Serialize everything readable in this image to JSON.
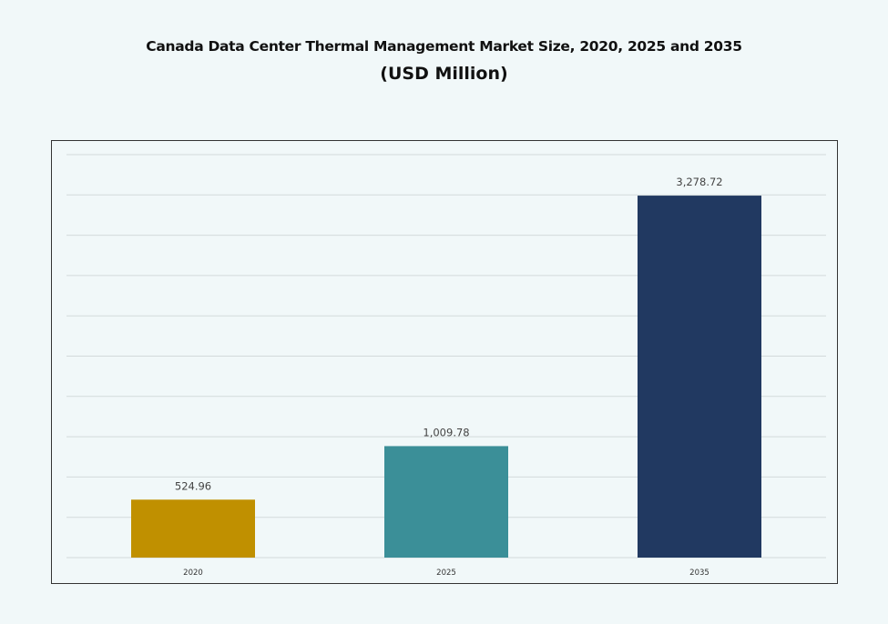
{
  "chart_data": {
    "type": "bar",
    "title": "Canada Data Center Thermal Management Market Size, 2020, 2025 and 2035",
    "subtitle": "(USD Million)",
    "categories": [
      "2020",
      "2025",
      "2035"
    ],
    "values": [
      524.96,
      1009.78,
      3278.72
    ],
    "value_labels": [
      "524.96",
      "1,009.78",
      "3,278.72"
    ],
    "colors": [
      "#c09000",
      "#3b8f98",
      "#213961"
    ],
    "ylim": [
      0,
      3650
    ],
    "grid": true,
    "legend": "none"
  }
}
